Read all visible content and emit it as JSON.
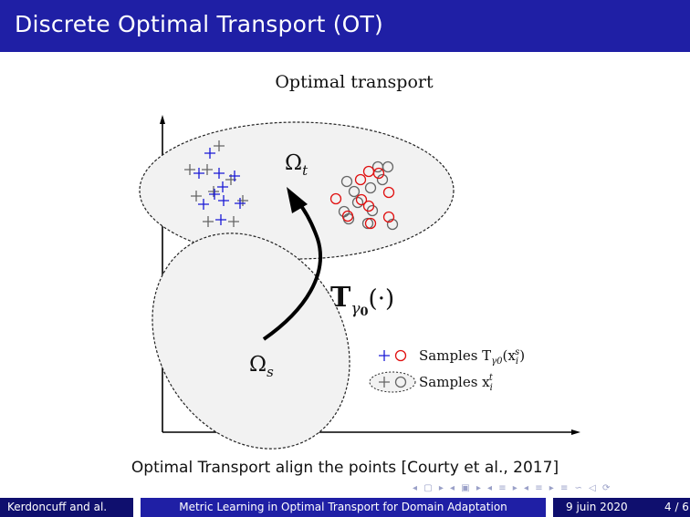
{
  "slide": {
    "title": "Discrete Optimal Transport (OT)",
    "caption": "Optimal Transport align the points [Courty et al., 2017]"
  },
  "figure": {
    "heading": "Optimal transport",
    "domain_target_label": "Ω",
    "domain_target_sub": "t",
    "domain_source_label": "Ω",
    "domain_source_sub": "s",
    "map_label": "T",
    "map_sub": "γ",
    "map_sub2": "0",
    "map_arg": "(·)",
    "legend": [
      {
        "label": "Samples T",
        "sub": "γ0",
        "arg": "(x",
        "arg_sub": "i",
        "arg_sup": "s",
        "close": ")"
      },
      {
        "label": "Samples x",
        "sub": "i",
        "sup": "t"
      }
    ],
    "colors": {
      "blue": "#1a1ad6",
      "red": "#e01010",
      "gray": "#666666"
    }
  },
  "footer": {
    "author": "Kerdoncuff and al.",
    "talk_title": "Metric Learning in Optimal Transport for Domain Adaptation",
    "date": "9 juin 2020",
    "page": "4 / 6"
  },
  "nav": {
    "symbols": "◂ ▢ ▸ ◂ ▣ ▸ ◂ ≡ ▸ ◂ ≡ ▸ ≡ ∽ ◁ ⟳"
  }
}
